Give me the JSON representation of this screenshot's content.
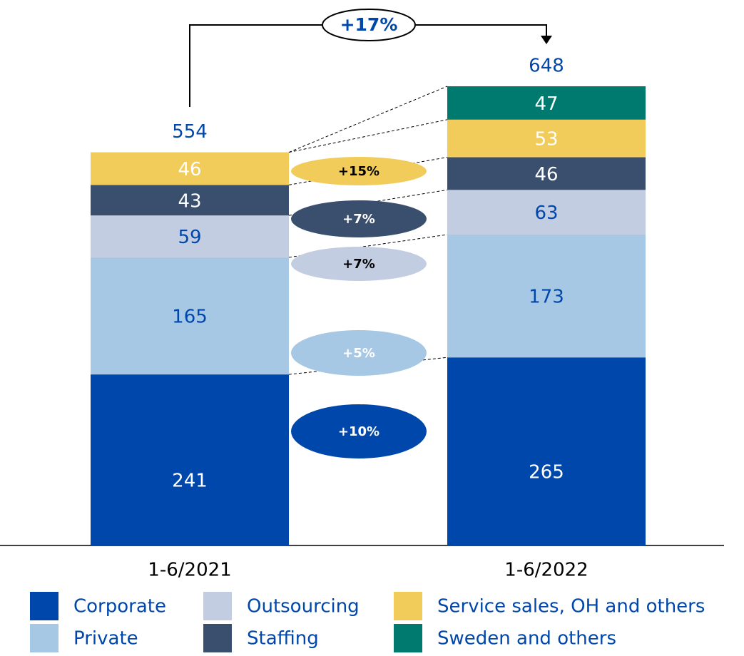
{
  "chart_data": {
    "type": "stacked_bar",
    "categories": [
      "1-6/2021",
      "1-6/2022"
    ],
    "totals": [
      554,
      648
    ],
    "total_growth_label": "+17%",
    "series": [
      {
        "name": "Corporate",
        "color": "#0047ab",
        "values": [
          241,
          265
        ],
        "growth_label": "+10%"
      },
      {
        "name": "Private",
        "color": "#a7c8e4",
        "values": [
          165,
          173
        ],
        "growth_label": "+5%"
      },
      {
        "name": "Outsourcing",
        "color": "#c3cde1",
        "values": [
          59,
          63
        ],
        "growth_label": "+7%"
      },
      {
        "name": "Staffing",
        "color": "#3a4e6e",
        "values": [
          43,
          46
        ],
        "growth_label": "+7%"
      },
      {
        "name": "Service sales, OH and others",
        "color": "#f2cc5b",
        "values": [
          46,
          53
        ],
        "growth_label": "+15%"
      },
      {
        "name": "Sweden and others",
        "color": "#007a6e",
        "values": [
          null,
          47
        ]
      }
    ]
  }
}
